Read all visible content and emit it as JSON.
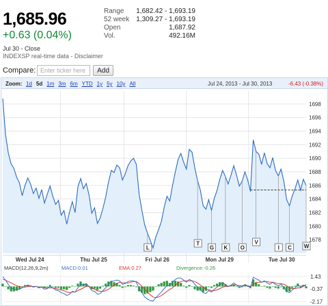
{
  "quote": {
    "price": "1,685.96",
    "change": "+0.63 (0.04%)",
    "as_of": "Jul 30 - Close",
    "source": "INDEXSP real-time data - Disclaimer",
    "stats": [
      {
        "label": "Range",
        "value": "1,682.42 - 1,693.19"
      },
      {
        "label": "52 week",
        "value": "1,309.27 - 1,693.19"
      },
      {
        "label": "Open",
        "value": "1,687.92"
      },
      {
        "label": "Vol.",
        "value": "492.16M"
      }
    ]
  },
  "compare": {
    "label": "Compare:",
    "placeholder": "Enter ticker here",
    "button_label": "Add"
  },
  "zoom": {
    "label": "Zoom:",
    "options": [
      "1d",
      "5d",
      "1m",
      "3m",
      "6m",
      "YTD",
      "1y",
      "5y",
      "10y",
      "All"
    ],
    "active": "5d",
    "date_range": "Jul 24, 2013 - Jul 30, 2013",
    "range_change": "-6.43 (-0.38%)"
  },
  "colors": {
    "line": "#2b6bbf",
    "area": "#e3effb",
    "up": "#0b8a32",
    "down": "#c9201e",
    "macd_line": "#3a6fc4",
    "ema_line": "#d43a2c",
    "divergence": "#2f9a3b"
  },
  "chart_data": {
    "type": "line",
    "title": "",
    "ylabel": "",
    "xlabel": "",
    "ylim": [
      1676,
      1700
    ],
    "yticks": [
      1678,
      1680,
      1682,
      1684,
      1686,
      1688,
      1690,
      1692,
      1694,
      1696,
      1698
    ],
    "x_labels": [
      "Wed Jul 24",
      "Thu Jul 25",
      "Fri Jul 26",
      "Mon Jul 29",
      "Tue Jul 30"
    ],
    "grid": true,
    "previous_close": 1685.33,
    "series": [
      {
        "values": [
          1698.8,
          1693.5,
          1690.8,
          1689.2,
          1688.5,
          1687.2,
          1686.4,
          1684.5,
          1686.0,
          1687.1,
          1686.2,
          1684.8,
          1685.6,
          1684.1,
          1685.4,
          1683.4,
          1684.7,
          1685.9,
          1684.4,
          1683.2,
          1683.8,
          1681.6,
          1682.3,
          1680.3,
          1682.1,
          1683.6,
          1682.0,
          1685.8,
          1687.0,
          1685.5,
          1686.3,
          1684.6,
          1681.9,
          1682.7,
          1680.4,
          1681.2,
          1682.6,
          1684.3,
          1686.5,
          1688.2,
          1687.9,
          1689.0,
          1688.6,
          1686.8,
          1687.7,
          1688.9,
          1689.6,
          1690.0,
          1689.1,
          1684.7,
          1682.3,
          1680.2,
          1679.0,
          1677.9,
          1676.8,
          1678.4,
          1679.5,
          1680.7,
          1682.8,
          1684.4,
          1683.7,
          1686.0,
          1688.0,
          1689.8,
          1690.7,
          1689.4,
          1688.4,
          1691.3,
          1690.9,
          1688.6,
          1686.7,
          1685.3,
          1683.0,
          1682.5,
          1683.9,
          1682.3,
          1684.1,
          1685.3,
          1686.9,
          1688.2,
          1687.3,
          1686.2,
          1687.5,
          1688.9,
          1687.5,
          1685.9,
          1686.6,
          1688.0,
          1686.8,
          1685.1,
          1692.7,
          1691.0,
          1690.6,
          1689.1,
          1690.8,
          1689.2,
          1688.6,
          1690.1,
          1688.2,
          1687.4,
          1688.4,
          1686.6,
          1683.9,
          1683.0,
          1684.4,
          1685.5,
          1686.8,
          1685.3,
          1686.9,
          1686.0
        ]
      }
    ],
    "news_flags": [
      {
        "letter": "L",
        "index": 52
      },
      {
        "letter": "T",
        "index": 70
      },
      {
        "letter": "G",
        "index": 75
      },
      {
        "letter": "K",
        "index": 80
      },
      {
        "letter": "O",
        "index": 86
      },
      {
        "letter": "V",
        "index": 91
      },
      {
        "letter": "I",
        "index": 99
      },
      {
        "letter": "C",
        "index": 103
      },
      {
        "letter": "W",
        "index": 109
      }
    ],
    "macd": {
      "params": "MACD(12,26,9,2m)",
      "macd_label": "MACD:0.01",
      "ema_label": "EMA:0.27",
      "divergence_label": "Divergence:-0.26",
      "ylim": [
        -2.4,
        1.8
      ],
      "yticks": [
        {
          "value": 1.43,
          "label": "1.43"
        },
        {
          "value": -0.37,
          "label": "-0.37"
        },
        {
          "value": -2.17,
          "label": "-2.17"
        }
      ],
      "macd_values": [
        1.4,
        0.9,
        0.3,
        -0.2,
        -0.4,
        -0.5,
        -0.4,
        -0.2,
        0.1,
        0.2,
        0.1,
        -0.1,
        0.0,
        -0.2,
        -0.1,
        -0.4,
        -0.3,
        0.0,
        -0.2,
        -0.5,
        -0.6,
        -0.9,
        -1.0,
        -1.3,
        -1.1,
        -0.7,
        -0.8,
        -0.2,
        0.3,
        0.2,
        0.4,
        0.0,
        -0.6,
        -0.7,
        -1.1,
        -1.0,
        -0.6,
        -0.2,
        0.3,
        0.7,
        0.8,
        0.9,
        0.8,
        0.3,
        0.4,
        0.7,
        0.8,
        0.8,
        0.6,
        -0.3,
        -0.9,
        -1.5,
        -1.8,
        -2.0,
        -2.1,
        -1.6,
        -1.2,
        -0.8,
        -0.3,
        0.1,
        0.1,
        0.6,
        1.0,
        1.2,
        1.2,
        0.9,
        0.6,
        1.0,
        0.8,
        0.3,
        -0.1,
        -0.4,
        -0.9,
        -1.0,
        -0.6,
        -0.8,
        -0.4,
        -0.1,
        0.3,
        0.5,
        0.3,
        0.0,
        0.2,
        0.5,
        0.2,
        -0.1,
        0.0,
        0.3,
        0.1,
        -0.2,
        1.3,
        1.1,
        0.9,
        0.6,
        0.8,
        0.5,
        0.3,
        0.6,
        0.3,
        0.1,
        0.3,
        -0.1,
        -0.7,
        -0.9,
        -0.5,
        -0.2,
        0.2,
        -0.1,
        0.2,
        0.01
      ],
      "ema_values": [
        1.0,
        0.9,
        0.7,
        0.5,
        0.3,
        0.1,
        0.0,
        -0.1,
        -0.1,
        0.0,
        0.0,
        0.0,
        0.0,
        -0.1,
        -0.1,
        -0.2,
        -0.2,
        -0.2,
        -0.2,
        -0.3,
        -0.4,
        -0.5,
        -0.6,
        -0.8,
        -0.9,
        -0.8,
        -0.8,
        -0.6,
        -0.4,
        -0.2,
        0.0,
        0.0,
        -0.2,
        -0.4,
        -0.6,
        -0.7,
        -0.7,
        -0.6,
        -0.4,
        -0.1,
        0.2,
        0.4,
        0.6,
        0.5,
        0.5,
        0.5,
        0.6,
        0.7,
        0.7,
        0.4,
        0.0,
        -0.4,
        -0.8,
        -1.2,
        -1.5,
        -1.6,
        -1.5,
        -1.3,
        -1.0,
        -0.7,
        -0.4,
        -0.2,
        0.2,
        0.5,
        0.7,
        0.8,
        0.8,
        0.8,
        0.8,
        0.7,
        0.5,
        0.2,
        -0.1,
        -0.4,
        -0.5,
        -0.6,
        -0.6,
        -0.5,
        -0.3,
        -0.1,
        0.0,
        0.0,
        0.1,
        0.2,
        0.2,
        0.1,
        0.1,
        0.1,
        0.1,
        0.0,
        0.3,
        0.5,
        0.6,
        0.6,
        0.7,
        0.7,
        0.6,
        0.6,
        0.5,
        0.4,
        0.4,
        0.3,
        0.1,
        -0.2,
        -0.3,
        -0.3,
        -0.2,
        -0.2,
        0.0,
        0.27
      ]
    }
  }
}
